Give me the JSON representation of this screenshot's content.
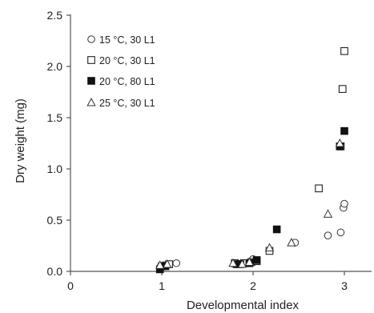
{
  "chart_data": {
    "type": "scatter",
    "xlabel": "Developmental index",
    "ylabel": "Dry weight (mg)",
    "xlim": [
      0,
      3.3
    ],
    "ylim": [
      0,
      2.5
    ],
    "x_ticks": [
      0,
      1,
      2,
      3
    ],
    "y_ticks": [
      0.0,
      0.5,
      1.0,
      1.5,
      2.0,
      2.5
    ],
    "x_tick_labels": [
      "0",
      "1",
      "2",
      "3"
    ],
    "y_tick_labels": [
      "0.0",
      "0.5",
      "1.0",
      "1.5",
      "2.0",
      "2.5"
    ],
    "grid": false,
    "legend_position": "top-left",
    "series": [
      {
        "name": "15 °C, 30 L1",
        "marker": "open-circle",
        "points": [
          [
            0.98,
            0.04
          ],
          [
            1.02,
            0.06
          ],
          [
            1.08,
            0.07
          ],
          [
            1.16,
            0.08
          ],
          [
            1.88,
            0.08
          ],
          [
            2.0,
            0.12
          ],
          [
            2.46,
            0.28
          ],
          [
            2.82,
            0.35
          ],
          [
            2.96,
            0.38
          ],
          [
            2.99,
            0.62
          ],
          [
            3.0,
            0.66
          ]
        ]
      },
      {
        "name": "20 °C, 30 L1",
        "marker": "open-square",
        "points": [
          [
            1.0,
            0.05
          ],
          [
            1.08,
            0.07
          ],
          [
            1.8,
            0.08
          ],
          [
            1.9,
            0.08
          ],
          [
            1.98,
            0.09
          ],
          [
            2.04,
            0.1
          ],
          [
            2.18,
            0.2
          ],
          [
            2.72,
            0.81
          ],
          [
            2.98,
            1.78
          ],
          [
            3.0,
            2.15
          ],
          [
            2.96,
            1.22
          ]
        ]
      },
      {
        "name": "20 °C, 80 L1",
        "marker": "filled-square",
        "points": [
          [
            0.98,
            0.02
          ],
          [
            1.04,
            0.05
          ],
          [
            1.82,
            0.07
          ],
          [
            1.86,
            0.07
          ],
          [
            1.96,
            0.08
          ],
          [
            2.04,
            0.11
          ],
          [
            2.26,
            0.41
          ],
          [
            2.95,
            1.22
          ],
          [
            3.0,
            1.37
          ]
        ]
      },
      {
        "name": "25 °C, 30 L1",
        "marker": "open-triangle",
        "points": [
          [
            0.98,
            0.06
          ],
          [
            1.06,
            0.07
          ],
          [
            1.78,
            0.08
          ],
          [
            1.88,
            0.07
          ],
          [
            1.96,
            0.09
          ],
          [
            2.18,
            0.23
          ],
          [
            2.42,
            0.28
          ],
          [
            2.82,
            0.56
          ],
          [
            2.95,
            1.25
          ]
        ]
      }
    ]
  }
}
